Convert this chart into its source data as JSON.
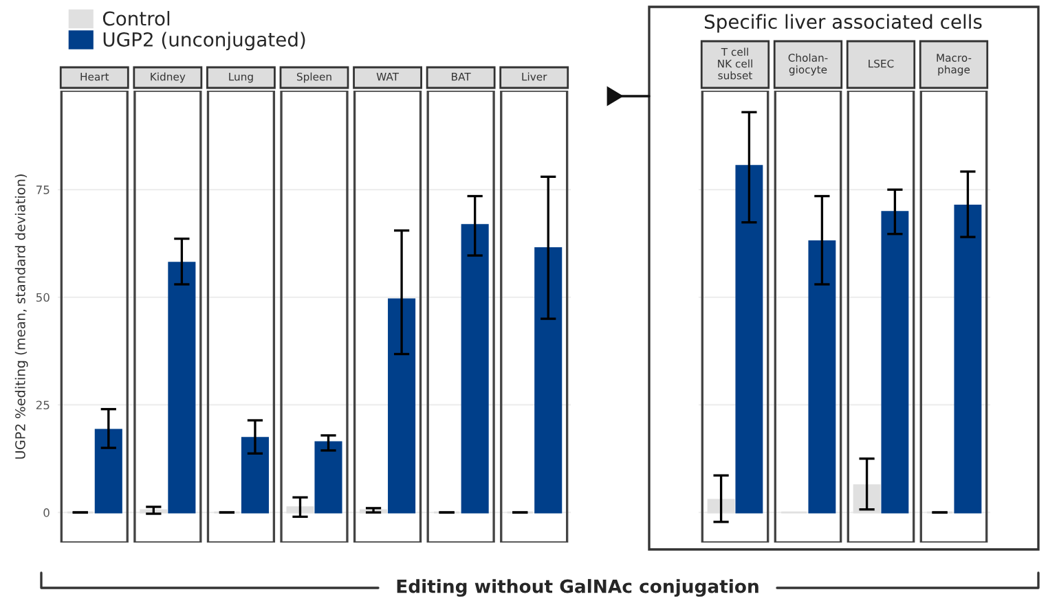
{
  "chart_data": [
    {
      "type": "bar",
      "ylabel": "UGP2 %editing (mean, standard deviation)",
      "categories": [
        "Heart",
        "Kidney",
        "Lung",
        "Spleen",
        "WAT",
        "BAT",
        "Liver"
      ],
      "ylim": [
        -7,
        98
      ],
      "yticks": [
        0,
        25,
        50,
        75
      ],
      "grid": "y",
      "legend": "top left",
      "annotations": [
        "Editing without GalNAc conjugation"
      ],
      "series": [
        {
          "name": "Control",
          "color": "#e0e0e0",
          "values": [
            0,
            0.5,
            0,
            1.2,
            0.5,
            0,
            0
          ],
          "errors": [
            0,
            [
              -0.3,
              1.3
            ],
            0,
            [
              -1,
              3.5
            ],
            [
              0,
              1
            ],
            0,
            0
          ]
        },
        {
          "name": "UGP2 (unconjugated)",
          "color": "#003f8a",
          "values": [
            19.2,
            58,
            17.3,
            16.3,
            49.5,
            66.8,
            61.4
          ],
          "errors": [
            [
              15,
              24
            ],
            [
              53,
              63.6
            ],
            [
              13.7,
              21.4
            ],
            [
              14.4,
              17.9
            ],
            [
              36.8,
              65.5
            ],
            [
              59.7,
              73.5
            ],
            [
              45,
              78
            ]
          ]
        }
      ]
    },
    {
      "type": "bar",
      "categories": [
        "T cell\nNK cell\nsubset",
        "Cholan-\ngiocyte",
        "LSEC",
        "Macro-\nphage"
      ],
      "ylim": [
        -7,
        98
      ],
      "yticks": [
        0,
        25,
        50,
        75
      ],
      "grid": "y",
      "tick_labels": "x",
      "annotations": [
        "Specific liver associated cells"
      ],
      "series": [
        {
          "color": "#e0e0e0",
          "values": [
            2.9,
            0,
            6.3,
            0
          ],
          "errors": [
            [
              -2.2,
              8.6
            ],
            null,
            [
              0.7,
              12.5
            ],
            0
          ]
        },
        {
          "color": "#003f8a",
          "values": [
            80.5,
            63,
            69.8,
            71.3
          ],
          "errors": [
            [
              67.4,
              93
            ],
            [
              53,
              73.5
            ],
            [
              64.7,
              75
            ],
            [
              64,
              79.2
            ]
          ]
        }
      ]
    }
  ]
}
